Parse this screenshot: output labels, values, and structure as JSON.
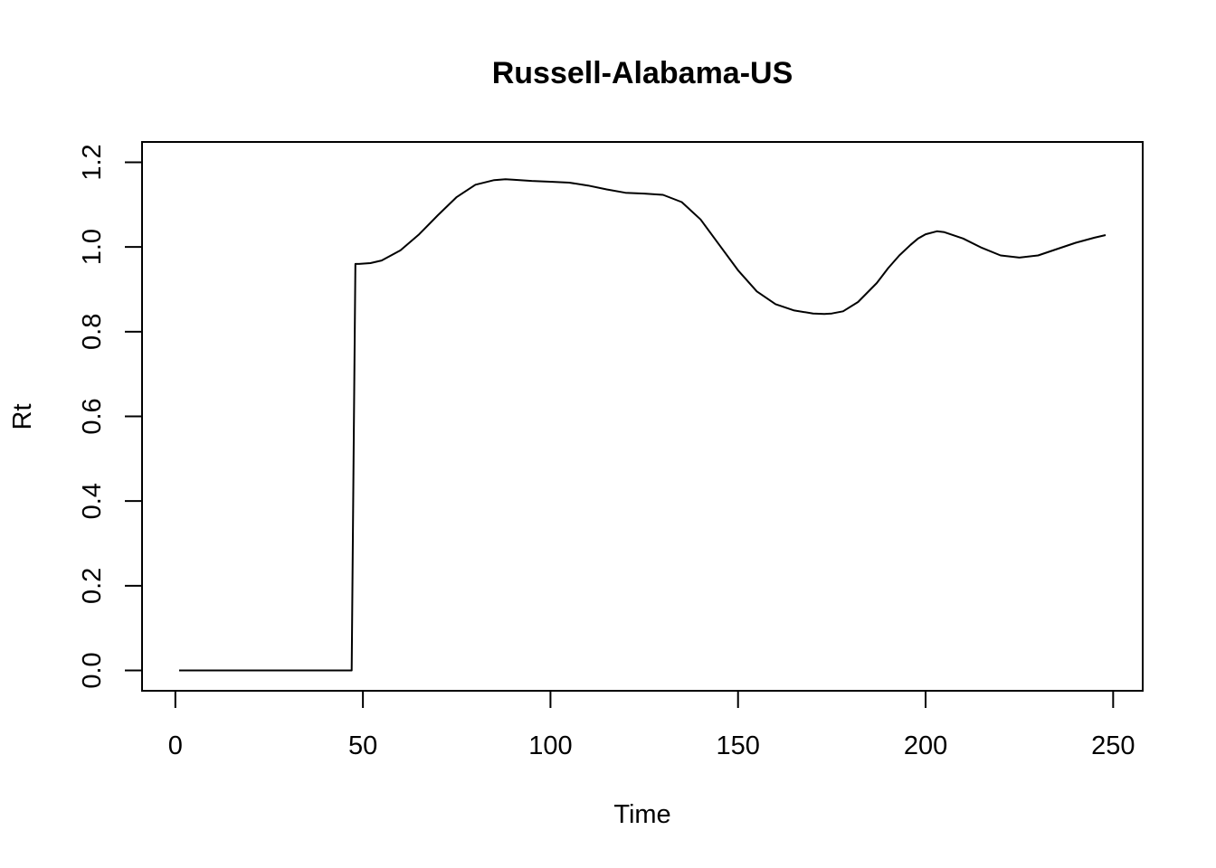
{
  "chart_data": {
    "type": "line",
    "title": "Russell-Alabama-US",
    "xlabel": "Time",
    "ylabel": "Rt",
    "xlim": [
      1,
      248
    ],
    "ylim": [
      0,
      1.2
    ],
    "xticks": [
      0,
      50,
      100,
      150,
      200,
      250
    ],
    "yticks": [
      0.0,
      0.2,
      0.4,
      0.6,
      0.8,
      1.0,
      1.2
    ],
    "ytick_labels": [
      "0.0",
      "0.2",
      "0.4",
      "0.6",
      "0.8",
      "1.0",
      "1.2"
    ],
    "grid": false,
    "legend": "none",
    "line_color": "#000000",
    "series": [
      {
        "x": [
          1,
          10,
          20,
          30,
          40,
          47,
          47.5,
          48,
          49,
          52,
          55,
          60,
          65,
          70,
          75,
          80,
          85,
          88,
          90,
          95,
          100,
          105,
          110,
          115,
          120,
          125,
          130,
          135,
          140,
          145,
          150,
          155,
          160,
          165,
          170,
          173,
          175,
          178,
          182,
          187,
          190,
          193,
          196,
          198,
          200,
          203,
          205,
          210,
          215,
          220,
          225,
          230,
          235,
          240,
          245,
          248
        ],
        "y": [
          0,
          0,
          0,
          0,
          0,
          0,
          0.5,
          0.96,
          0.96,
          0.962,
          0.968,
          0.992,
          1.03,
          1.075,
          1.118,
          1.147,
          1.158,
          1.16,
          1.159,
          1.156,
          1.154,
          1.152,
          1.145,
          1.136,
          1.128,
          1.126,
          1.123,
          1.106,
          1.065,
          1.005,
          0.945,
          0.895,
          0.865,
          0.85,
          0.843,
          0.842,
          0.843,
          0.848,
          0.87,
          0.915,
          0.95,
          0.98,
          1.005,
          1.02,
          1.03,
          1.037,
          1.035,
          1.02,
          0.998,
          0.98,
          0.975,
          0.98,
          0.995,
          1.01,
          1.022,
          1.028
        ]
      }
    ]
  }
}
